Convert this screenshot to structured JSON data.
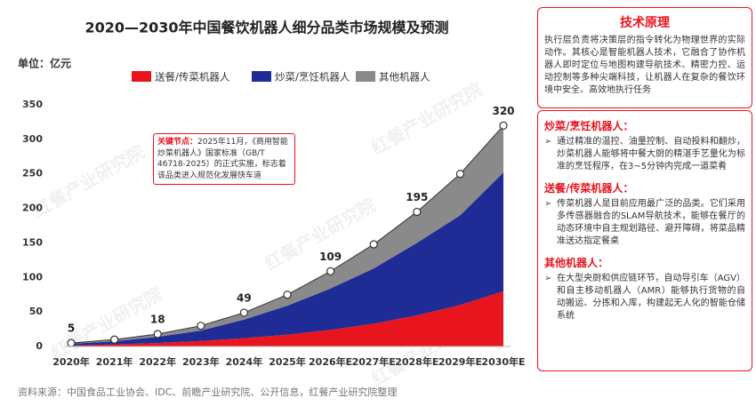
{
  "chart_data": {
    "type": "stacked-area",
    "title": "2020—2030年中国餐饮机器人细分品类市场规模及预测",
    "unit": "单位：亿元",
    "categories": [
      "2020年",
      "2021年",
      "2022年",
      "2023年",
      "2024年",
      "2025年",
      "2026年E",
      "2027年E",
      "2028年E",
      "2029年E",
      "2030年E"
    ],
    "series": [
      {
        "name": "送餐/传菜机器人",
        "color": "#e8141e",
        "values": [
          1.5,
          3,
          5,
          8,
          12,
          17,
          24,
          33,
          45,
          60,
          80
        ]
      },
      {
        "name": "炒菜/烹饪机器人",
        "color": "#1f2c96",
        "values": [
          2.5,
          4.5,
          9,
          15,
          27,
          42,
          60,
          80,
          105,
          130,
          172
        ]
      },
      {
        "name": "其他机器人",
        "color": "#8a8a8a",
        "values": [
          1,
          2.5,
          4,
          7,
          10,
          16,
          25,
          35,
          45,
          60,
          68
        ]
      }
    ],
    "totals": [
      5,
      10,
      18,
      30,
      49,
      75,
      109,
      148,
      195,
      250,
      320
    ],
    "total_labels": [
      "5",
      null,
      "18",
      null,
      "49",
      null,
      "109",
      null,
      "195",
      null,
      "320"
    ],
    "ylim": [
      0,
      350
    ],
    "yticks": [
      0,
      50,
      100,
      150,
      200,
      250,
      300,
      350
    ],
    "annotation": {
      "label": "关键节点：",
      "text": "2025年11月，《商用智能炒菜机器人》国家标准（GB/T 46718-2025）的正式实施，标志着该品类进入规范化发展快车道"
    },
    "source": "资料来源：中国食品工业协会、IDC、前瞻产业研究院、公开信息，红餐产业研究院整理",
    "watermark": "红餐产业研究院"
  },
  "panel": {
    "title": "技术原理",
    "intro": "执行层负责将决策层的指令转化为物理世界的实际动作。其核心是智能机器人技术，它融合了协作机器人即时定位与地图构建导航技术、精密力控、运动控制等多种尖端科技，让机器人在复杂的餐饮环境中安全、高效地执行任务",
    "sections": [
      {
        "heading": "炒菜/烹饪机器人：",
        "text": "通过精准的温控、油量控制、自动投料和翻炒，炒菜机器人能够将中餐大厨的精湛手艺量化为标准的烹饪程序，在3~5分钟内完成一道菜肴"
      },
      {
        "heading": "送餐/传菜机器人：",
        "text": "传菜机器人是目前应用最广泛的品类。它们采用多传感器融合的SLAM导航技术，能够在餐厅的动态环境中自主规划路径、避开障碍，将菜品精准送达指定餐桌"
      },
      {
        "heading": "其他机器人：",
        "text": "在大型央厨和供应链环节，自动导引车（AGV）和自主移动机器人（AMR）能够执行货物的自动搬运、分拣和入库，构建起无人化的智能仓储系统"
      }
    ]
  }
}
